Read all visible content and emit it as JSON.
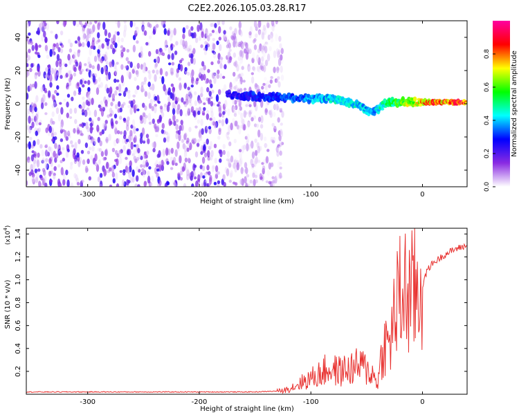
{
  "title": "C2E2.2026.105.03.28.R17",
  "chart_data": [
    {
      "type": "heatmap",
      "xlabel": "Height of straight line (km)",
      "ylabel": "Frequency (Hz)",
      "xlim": [
        -355,
        40
      ],
      "ylim": [
        -50,
        50
      ],
      "xticks": [
        -300,
        -200,
        -100,
        0
      ],
      "yticks": [
        -40,
        -20,
        0,
        20,
        40
      ],
      "colorbar": {
        "label": "Normalized spectral amplitude",
        "range": [
          0.0,
          1.0
        ],
        "ticks": [
          "0.0",
          "0.2",
          "0.4",
          "0.6",
          "0.8"
        ],
        "colors": [
          "#ffffff",
          "#8a2be2",
          "#0000ff",
          "#00ffff",
          "#00ff00",
          "#ffff00",
          "#ff0000",
          "#ff00a0"
        ]
      },
      "noise_region": {
        "x": [
          -355,
          -125
        ],
        "frequency": [
          -50,
          50
        ],
        "amplitude": [
          0.02,
          0.25
        ]
      },
      "signal_ridge": [
        {
          "x": -175,
          "frequency": 5,
          "amplitude": 0.25
        },
        {
          "x": -160,
          "frequency": 5,
          "amplitude": 0.3
        },
        {
          "x": -140,
          "frequency": 4,
          "amplitude": 0.3
        },
        {
          "x": -120,
          "frequency": 4,
          "amplitude": 0.35
        },
        {
          "x": -100,
          "frequency": 3,
          "amplitude": 0.4
        },
        {
          "x": -80,
          "frequency": 3,
          "amplitude": 0.45
        },
        {
          "x": -60,
          "frequency": 0,
          "amplitude": 0.45
        },
        {
          "x": -45,
          "frequency": -5,
          "amplitude": 0.4
        },
        {
          "x": -30,
          "frequency": 1,
          "amplitude": 0.55
        },
        {
          "x": -15,
          "frequency": 1,
          "amplitude": 0.65
        },
        {
          "x": 0,
          "frequency": 1,
          "amplitude": 0.8
        },
        {
          "x": 15,
          "frequency": 1,
          "amplitude": 0.85
        },
        {
          "x": 40,
          "frequency": 1,
          "amplitude": 0.9
        }
      ]
    },
    {
      "type": "line",
      "xlabel": "Height of straight line (km)",
      "ylabel": "SNR (10 * v/v)",
      "yscale_label": "(x10",
      "yscale_exponent": "4",
      "yscale_suffix": ")",
      "xlim": [
        -355,
        40
      ],
      "ylim": [
        0,
        1.45
      ],
      "xticks": [
        -300,
        -200,
        -100,
        0
      ],
      "yticks": [
        0.2,
        0.4,
        0.6,
        0.8,
        1.0,
        1.2,
        1.4
      ],
      "line_color": "#e8312f",
      "series": [
        {
          "x": [
            -355,
            -300,
            -250,
            -200,
            -150,
            -125,
            -115,
            -105,
            -95,
            -85,
            -75,
            -65,
            -55,
            -45,
            -40,
            -35,
            -30,
            -25,
            -20,
            -15,
            -10,
            -5,
            0,
            5,
            10,
            20,
            30,
            40
          ],
          "y": [
            0.02,
            0.02,
            0.02,
            0.02,
            0.02,
            0.03,
            0.07,
            0.12,
            0.16,
            0.22,
            0.2,
            0.22,
            0.25,
            0.18,
            0.1,
            0.45,
            0.4,
            0.7,
            0.85,
            0.9,
            0.85,
            0.9,
            0.95,
            1.1,
            1.15,
            1.22,
            1.27,
            1.3
          ]
        }
      ]
    }
  ]
}
